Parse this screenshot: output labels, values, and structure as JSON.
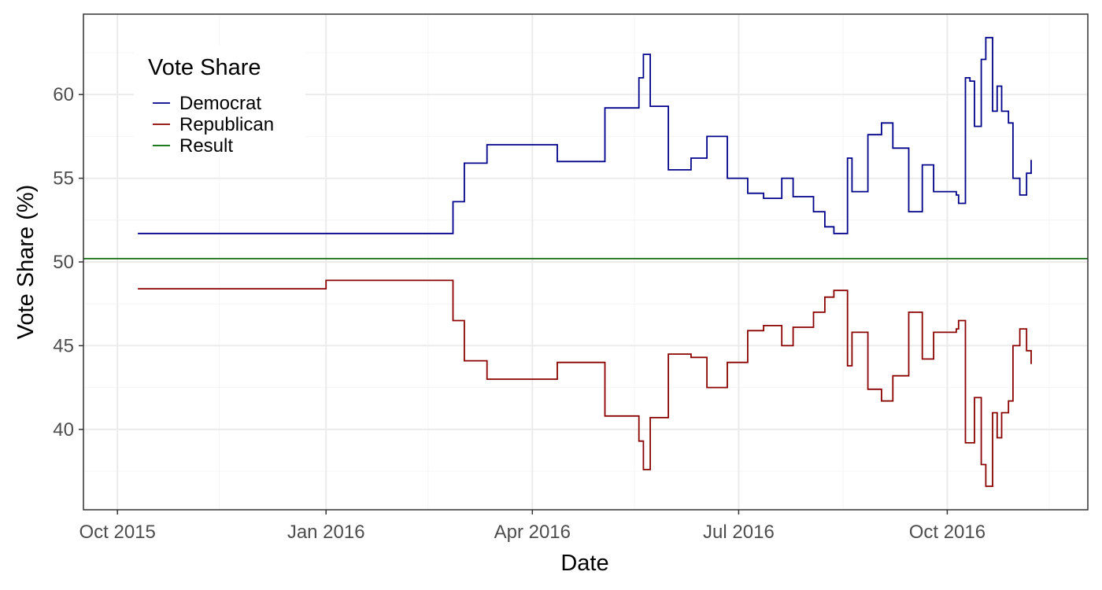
{
  "chart_data": {
    "type": "line",
    "title": "",
    "xlabel": "Date",
    "ylabel": "Vote Share (%)",
    "x_axis": {
      "type": "date",
      "range": [
        "2015-09-16",
        "2016-12-02"
      ],
      "ticks": [
        {
          "date": "2015-10-01",
          "label": "Oct 2015"
        },
        {
          "date": "2016-01-01",
          "label": "Jan 2016"
        },
        {
          "date": "2016-04-01",
          "label": "Apr 2016"
        },
        {
          "date": "2016-07-01",
          "label": "Jul 2016"
        },
        {
          "date": "2016-10-01",
          "label": "Oct 2016"
        }
      ],
      "minor_ticks": [
        "2015-11-15",
        "2016-02-15",
        "2016-05-16",
        "2016-08-16",
        "2016-11-15"
      ]
    },
    "y_axis": {
      "range": [
        35.2,
        64.8
      ],
      "ticks": [
        40,
        45,
        50,
        55,
        60
      ],
      "minor_ticks": [
        37.5,
        42.5,
        47.5,
        52.5,
        57.5,
        62.5
      ]
    },
    "grid": true,
    "legend": {
      "title": "Vote Share",
      "position": "top-left",
      "entries": [
        "Democrat",
        "Republican",
        "Result"
      ]
    },
    "result_value": 50.2,
    "colors": {
      "Democrat": "#00008b",
      "Republican": "#8b0000",
      "Result": "#006400",
      "panel_border": "#333333",
      "grid_major": "#ebebeb",
      "grid_minor": "#f4f4f4"
    },
    "series": [
      {
        "name": "Democrat",
        "step": true,
        "x": [
          "2015-10-10",
          "2016-01-01",
          "2016-02-26",
          "2016-03-02",
          "2016-03-12",
          "2016-04-12",
          "2016-04-25",
          "2016-05-03",
          "2016-05-18",
          "2016-05-20",
          "2016-05-23",
          "2016-05-31",
          "2016-06-10",
          "2016-06-17",
          "2016-06-26",
          "2016-07-05",
          "2016-07-12",
          "2016-07-20",
          "2016-07-25",
          "2016-08-03",
          "2016-08-08",
          "2016-08-12",
          "2016-08-18",
          "2016-08-20",
          "2016-08-27",
          "2016-09-02",
          "2016-09-07",
          "2016-09-14",
          "2016-09-20",
          "2016-09-25",
          "2016-10-05",
          "2016-10-06",
          "2016-10-09",
          "2016-10-11",
          "2016-10-13",
          "2016-10-16",
          "2016-10-18",
          "2016-10-21",
          "2016-10-23",
          "2016-10-25",
          "2016-10-28",
          "2016-10-30",
          "2016-11-02",
          "2016-11-05",
          "2016-11-07"
        ],
        "y": [
          51.7,
          51.7,
          53.6,
          55.9,
          57.0,
          56.0,
          56.0,
          59.2,
          61.0,
          62.4,
          59.3,
          55.5,
          56.2,
          57.5,
          55.0,
          54.1,
          53.8,
          55.0,
          53.9,
          53.0,
          52.1,
          51.7,
          56.2,
          54.2,
          57.6,
          58.3,
          56.8,
          53.0,
          55.8,
          54.2,
          54.0,
          53.5,
          61.0,
          60.8,
          58.1,
          62.1,
          63.4,
          59.0,
          60.5,
          59.0,
          58.3,
          55.0,
          54.0,
          55.3,
          56.1
        ]
      },
      {
        "name": "Republican",
        "step": true,
        "x": [
          "2015-10-10",
          "2016-01-01",
          "2016-02-26",
          "2016-03-02",
          "2016-03-12",
          "2016-04-12",
          "2016-04-25",
          "2016-05-03",
          "2016-05-18",
          "2016-05-20",
          "2016-05-23",
          "2016-05-31",
          "2016-06-10",
          "2016-06-17",
          "2016-06-26",
          "2016-07-05",
          "2016-07-12",
          "2016-07-20",
          "2016-07-25",
          "2016-08-03",
          "2016-08-08",
          "2016-08-12",
          "2016-08-18",
          "2016-08-20",
          "2016-08-27",
          "2016-09-02",
          "2016-09-07",
          "2016-09-14",
          "2016-09-20",
          "2016-09-25",
          "2016-10-05",
          "2016-10-06",
          "2016-10-09",
          "2016-10-11",
          "2016-10-13",
          "2016-10-16",
          "2016-10-18",
          "2016-10-21",
          "2016-10-23",
          "2016-10-25",
          "2016-10-28",
          "2016-10-30",
          "2016-11-02",
          "2016-11-05",
          "2016-11-07"
        ],
        "y": [
          48.4,
          48.9,
          46.5,
          44.1,
          43.0,
          44.0,
          44.0,
          40.8,
          39.3,
          37.6,
          40.7,
          44.5,
          44.3,
          42.5,
          44.0,
          45.9,
          46.2,
          45.0,
          46.1,
          47.0,
          47.9,
          48.3,
          43.8,
          45.8,
          42.4,
          41.7,
          43.2,
          47.0,
          44.2,
          45.8,
          46.0,
          46.5,
          39.2,
          39.2,
          41.9,
          37.9,
          36.6,
          41.0,
          39.5,
          41.0,
          41.7,
          45.0,
          46.0,
          44.7,
          43.9
        ]
      }
    ]
  }
}
